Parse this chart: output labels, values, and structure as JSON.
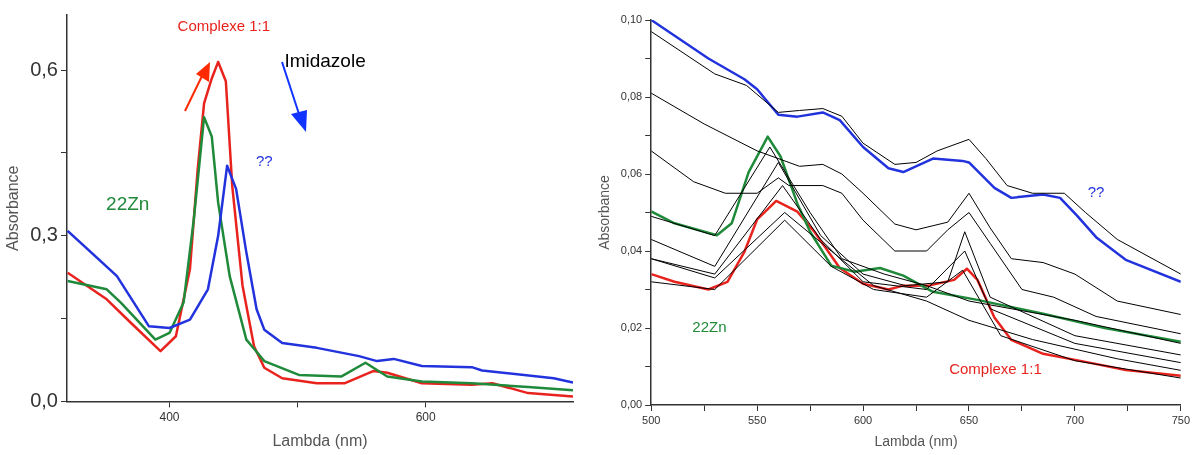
{
  "chart_data": [
    {
      "type": "line",
      "xlabel": "Lambda (nm)",
      "ylabel": "Absorbance",
      "annotations": [
        "Imidazole"
      ],
      "xlim": [
        320,
        715
      ],
      "ylim": [
        0,
        0.7
      ],
      "xticks": [
        400,
        {
          "value": 500,
          "label": null
        },
        600
      ],
      "yticks": [
        {
          "value": 0,
          "label": "0,0"
        },
        {
          "value": 0.15,
          "label": null
        },
        {
          "value": 0.3,
          "label": "0,3"
        },
        {
          "value": 0.45,
          "label": null
        },
        {
          "value": 0.6,
          "label": "0,6"
        }
      ],
      "grid": false,
      "legend": false,
      "marker": "none",
      "line_style": "solid",
      "series": [
        {
          "name": "??",
          "color": "#2233dd",
          "x": [
            320.5,
            359,
            384,
            400,
            416,
            430,
            438,
            445,
            452,
            460,
            468,
            474,
            488,
            515,
            548,
            562,
            575,
            597,
            636,
            644,
            700,
            715
          ],
          "values": [
            0.309,
            0.227,
            0.136,
            0.133,
            0.148,
            0.203,
            0.3,
            0.427,
            0.385,
            0.27,
            0.167,
            0.13,
            0.106,
            0.097,
            0.082,
            0.073,
            0.077,
            0.064,
            0.062,
            0.056,
            0.042,
            0.034
          ]
        },
        {
          "name": "22Zn",
          "color": "#1f8a3a",
          "x": [
            320.5,
            351,
            362,
            389,
            400,
            411,
            419,
            427,
            433,
            438,
            447,
            460,
            474,
            501,
            534,
            553,
            570,
            597,
            636,
            680,
            715
          ],
          "values": [
            0.218,
            0.203,
            0.179,
            0.112,
            0.124,
            0.179,
            0.33,
            0.515,
            0.48,
            0.36,
            0.227,
            0.112,
            0.073,
            0.048,
            0.045,
            0.07,
            0.045,
            0.036,
            0.033,
            0.026,
            0.02
          ]
        },
        {
          "name": "Complexe 1:1",
          "color": "#e8231e",
          "x": [
            320.5,
            351,
            370,
            393,
            405,
            416,
            422,
            427,
            433,
            438,
            444,
            449,
            457,
            466,
            474,
            488,
            515,
            537,
            559,
            570,
            597,
            636,
            652,
            680,
            715
          ],
          "values": [
            0.233,
            0.185,
            0.142,
            0.091,
            0.118,
            0.24,
            0.42,
            0.54,
            0.585,
            0.615,
            0.58,
            0.39,
            0.21,
            0.1,
            0.061,
            0.042,
            0.033,
            0.033,
            0.055,
            0.052,
            0.033,
            0.03,
            0.033,
            0.015,
            0.009
          ]
        }
      ]
    },
    {
      "type": "line",
      "xlabel": "Lambda (nm)",
      "ylabel": "Absorbance",
      "xlim": [
        500,
        750
      ],
      "ylim": [
        0,
        0.1
      ],
      "xticks": [
        500,
        {
          "value": 525,
          "label": null
        },
        550,
        {
          "value": 575,
          "label": null
        },
        600,
        {
          "value": 625,
          "label": null
        },
        650,
        {
          "value": 675,
          "label": null
        },
        700,
        {
          "value": 725,
          "label": null
        },
        750
      ],
      "yticks": [
        {
          "value": 0,
          "label": "0,00"
        },
        {
          "value": 0.01,
          "label": null
        },
        {
          "value": 0.02,
          "label": "0,02"
        },
        {
          "value": 0.03,
          "label": null
        },
        {
          "value": 0.04,
          "label": "0,04"
        },
        {
          "value": 0.05,
          "label": null
        },
        {
          "value": 0.06,
          "label": "0,06"
        },
        {
          "value": 0.07,
          "label": null
        },
        {
          "value": 0.08,
          "label": "0,08"
        },
        {
          "value": 0.09,
          "label": null
        },
        {
          "value": 0.1,
          "label": "0,10"
        }
      ],
      "grid": false,
      "legend": false,
      "marker": "none",
      "line_style": "solid",
      "series": [
        {
          "color": "#000000",
          "x": [
            500,
            530,
            545,
            560,
            570,
            581,
            590,
            600,
            615,
            625,
            635,
            640,
            650,
            658,
            668,
            680,
            695,
            705,
            720,
            750
          ],
          "values": [
            0.097,
            0.086,
            0.083,
            0.076,
            0.0765,
            0.077,
            0.075,
            0.068,
            0.0625,
            0.063,
            0.066,
            0.067,
            0.069,
            0.064,
            0.057,
            0.055,
            0.055,
            0.05,
            0.043,
            0.034
          ]
        },
        {
          "color": "#000000",
          "x": [
            500,
            525,
            550,
            570,
            581,
            590,
            600,
            615,
            625,
            640,
            650,
            660,
            670,
            685,
            700,
            720,
            750
          ],
          "values": [
            0.081,
            0.073,
            0.066,
            0.062,
            0.0625,
            0.06,
            0.055,
            0.047,
            0.0455,
            0.0475,
            0.055,
            0.046,
            0.038,
            0.037,
            0.034,
            0.027,
            0.0235
          ]
        },
        {
          "color": "#000000",
          "x": [
            500,
            520,
            535,
            550,
            560,
            565,
            581,
            590,
            600,
            615,
            630,
            640,
            650,
            660,
            675,
            690,
            710,
            750
          ],
          "values": [
            0.066,
            0.058,
            0.055,
            0.055,
            0.059,
            0.057,
            0.057,
            0.055,
            0.048,
            0.04,
            0.04,
            0.0455,
            0.05,
            0.042,
            0.03,
            0.028,
            0.023,
            0.0185
          ]
        },
        {
          "color": "#000000",
          "x": [
            500,
            530,
            556,
            575,
            590,
            610,
            630,
            650,
            700,
            750
          ],
          "values": [
            0.049,
            0.044,
            0.067,
            0.05,
            0.038,
            0.034,
            0.031,
            0.027,
            0.022,
            0.016
          ]
        },
        {
          "color": "#000000",
          "x": [
            500,
            530,
            560,
            580,
            600,
            620,
            640,
            648,
            660,
            700,
            750
          ],
          "values": [
            0.043,
            0.036,
            0.063,
            0.044,
            0.034,
            0.031,
            0.032,
            0.045,
            0.028,
            0.018,
            0.013
          ]
        },
        {
          "color": "#000000",
          "x": [
            500,
            530,
            562,
            580,
            600,
            630,
            648,
            660,
            700,
            750
          ],
          "values": [
            0.038,
            0.034,
            0.057,
            0.043,
            0.032,
            0.03,
            0.04,
            0.025,
            0.016,
            0.011
          ]
        },
        {
          "color": "#000000",
          "x": [
            500,
            530,
            563,
            585,
            605,
            630,
            650,
            680,
            720,
            750
          ],
          "values": [
            0.038,
            0.033,
            0.05,
            0.04,
            0.031,
            0.027,
            0.022,
            0.017,
            0.012,
            0.009
          ]
        },
        {
          "color": "#000000",
          "x": [
            500,
            530,
            563,
            585,
            605,
            630,
            647,
            665,
            700,
            750
          ],
          "values": [
            0.032,
            0.03,
            0.048,
            0.036,
            0.03,
            0.028,
            0.035,
            0.018,
            0.0115,
            0.007
          ]
        },
        {
          "name": "22Zn",
          "color": "#1f8a3a",
          "x": [
            500,
            511,
            531,
            538,
            546,
            555,
            561,
            569,
            575,
            585,
            596,
            608,
            619,
            633,
            654,
            685,
            714,
            750
          ],
          "values": [
            0.0503,
            0.0472,
            0.0441,
            0.0472,
            0.0605,
            0.0697,
            0.0646,
            0.0523,
            0.045,
            0.0362,
            0.0346,
            0.0356,
            0.0336,
            0.0294,
            0.0273,
            0.0237,
            0.02,
            0.0164
          ]
        },
        {
          "name": "Complexe 1:1",
          "color": "#e8231e",
          "x": [
            500,
            511,
            527,
            536,
            544,
            550,
            559,
            569,
            577,
            589,
            600,
            612,
            619,
            631,
            643,
            649,
            654,
            662,
            670,
            685,
            705,
            724,
            750
          ],
          "values": [
            0.034,
            0.032,
            0.03,
            0.032,
            0.0398,
            0.0482,
            0.053,
            0.0502,
            0.045,
            0.0356,
            0.0315,
            0.03,
            0.031,
            0.031,
            0.0325,
            0.0354,
            0.0325,
            0.0227,
            0.0169,
            0.0133,
            0.0112,
            0.0091,
            0.0076
          ]
        },
        {
          "name": "??",
          "color": "#2233dd",
          "x": [
            500,
            527,
            544,
            550,
            560,
            569,
            581,
            589,
            600,
            612,
            619,
            633,
            647,
            650,
            662,
            670,
            685,
            693,
            701,
            710,
            724,
            750
          ],
          "values": [
            0.1,
            0.09,
            0.0846,
            0.082,
            0.0754,
            0.0749,
            0.076,
            0.074,
            0.067,
            0.0615,
            0.0605,
            0.064,
            0.0634,
            0.063,
            0.0564,
            0.0538,
            0.0547,
            0.0538,
            0.0492,
            0.0436,
            0.0377,
            0.032
          ]
        }
      ]
    }
  ]
}
